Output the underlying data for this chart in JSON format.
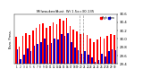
{
  "title": "Milwaukee/Aust. Wi 1.5x=30.135",
  "subtitle": "Baro. Press.",
  "x_labels": [
    "1",
    "2",
    "3",
    "4",
    "5",
    "6",
    "7",
    "8",
    "9",
    "10",
    "11",
    "12",
    "13",
    "14",
    "15",
    "16",
    "17",
    "18",
    "19",
    "20",
    "21",
    "22",
    "23",
    "24",
    "25",
    "26",
    "27",
    "28",
    "29",
    "30"
  ],
  "high_values": [
    30.05,
    29.82,
    30.08,
    30.15,
    30.1,
    30.2,
    30.28,
    30.35,
    30.38,
    30.28,
    30.32,
    30.4,
    30.35,
    30.48,
    30.45,
    30.5,
    30.32,
    30.22,
    30.18,
    30.12,
    30.15,
    30.1,
    30.02,
    29.92,
    29.98,
    30.06,
    30.02,
    30.08,
    30.12,
    30.1
  ],
  "low_values": [
    29.75,
    29.52,
    29.62,
    29.78,
    29.7,
    29.83,
    29.88,
    29.93,
    30.02,
    29.85,
    29.9,
    30.02,
    29.98,
    30.12,
    30.08,
    30.15,
    29.92,
    29.8,
    29.72,
    29.65,
    29.7,
    29.62,
    29.55,
    29.45,
    29.5,
    29.65,
    29.58,
    29.7,
    29.75,
    29.72
  ],
  "high_color": "#ff0000",
  "low_color": "#0000cc",
  "ylim_min": 29.4,
  "ylim_max": 30.6,
  "ytick_values": [
    29.4,
    29.6,
    29.8,
    30.0,
    30.2,
    30.4,
    30.6
  ],
  "ytick_labels": [
    "29.4",
    "29.6",
    "29.8",
    "30.0",
    "30.2",
    "30.4",
    "30.6"
  ],
  "bg_color": "#ffffff",
  "bar_width": 0.42,
  "dashed_vlines": [
    18.5,
    19.5
  ],
  "legend_high": "High",
  "legend_low": "Low",
  "n_days": 30
}
